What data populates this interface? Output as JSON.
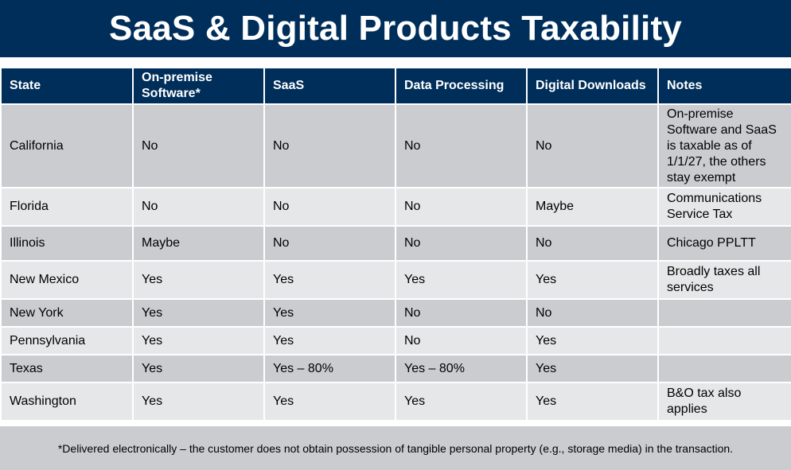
{
  "title": "SaaS & Digital Products Taxability",
  "columns": [
    "State",
    "On-premise Software*",
    "SaaS",
    "Data Processing",
    "Digital Downloads",
    "Notes"
  ],
  "rows": [
    {
      "state": "California",
      "onprem": "No",
      "saas": "No",
      "data_processing": "No",
      "digital_downloads": "No",
      "notes": "On-premise Software and SaaS is taxable as of 1/1/27, the others stay exempt"
    },
    {
      "state": "Florida",
      "onprem": "No",
      "saas": "No",
      "data_processing": "No",
      "digital_downloads": "Maybe",
      "notes": "Communications Service Tax"
    },
    {
      "state": "Illinois",
      "onprem": "Maybe",
      "saas": "No",
      "data_processing": "No",
      "digital_downloads": "No",
      "notes": "Chicago PPLTT"
    },
    {
      "state": "New Mexico",
      "onprem": "Yes",
      "saas": "Yes",
      "data_processing": "Yes",
      "digital_downloads": "Yes",
      "notes": "Broadly taxes all services"
    },
    {
      "state": "New York",
      "onprem": "Yes",
      "saas": "Yes",
      "data_processing": "No",
      "digital_downloads": "No",
      "notes": ""
    },
    {
      "state": "Pennsylvania",
      "onprem": "Yes",
      "saas": "Yes",
      "data_processing": "No",
      "digital_downloads": "Yes",
      "notes": ""
    },
    {
      "state": "Texas",
      "onprem": "Yes",
      "saas": "Yes – 80%",
      "data_processing": "Yes – 80%",
      "digital_downloads": "Yes",
      "notes": ""
    },
    {
      "state": "Washington",
      "onprem": "Yes",
      "saas": "Yes",
      "data_processing": "Yes",
      "digital_downloads": "Yes",
      "notes": "B&O tax also applies"
    }
  ],
  "footnote": "*Delivered electronically – the customer does not obtain possession of tangible personal property (e.g., storage media) in the transaction.",
  "colors": {
    "header_bg": "#002e5a",
    "row_dark": "#cbcccf",
    "row_light": "#e6e7e9"
  }
}
